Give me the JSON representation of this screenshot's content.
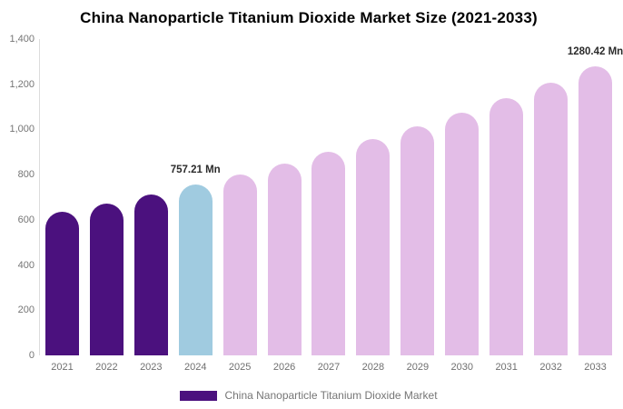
{
  "title": "China Nanoparticle Titanium Dioxide Market Size (2021-2033)",
  "legend": {
    "label": "China Nanoparticle Titanium Dioxide Market",
    "swatch_color": "#4b117e"
  },
  "colors": {
    "history_bar": "#4b117e",
    "current_bar": "#a0cbe0",
    "forecast_bar": "#e3bde7",
    "axis_line": "#dcdcdc",
    "tick_text": "#757575",
    "value_label_text": "#2b2b2b",
    "title_text": "#000000",
    "background": "#ffffff"
  },
  "chart_data": {
    "type": "bar",
    "title": "China Nanoparticle Titanium Dioxide Market Size (2021-2033)",
    "xlabel": "",
    "ylabel": "",
    "unit": "Mn",
    "ylim": [
      0,
      1400
    ],
    "grid": false,
    "legend_position": "bottom",
    "categories": [
      "2021",
      "2022",
      "2023",
      "2024",
      "2025",
      "2026",
      "2027",
      "2028",
      "2029",
      "2030",
      "2031",
      "2032",
      "2033"
    ],
    "values": [
      635.58,
      673.77,
      714.26,
      757.21,
      802.71,
      850.95,
      902.08,
      956.29,
      1013.75,
      1074.67,
      1139.25,
      1207.71,
      1280.42
    ],
    "color_roles": [
      "history",
      "history",
      "history",
      "current",
      "forecast",
      "forecast",
      "forecast",
      "forecast",
      "forecast",
      "forecast",
      "forecast",
      "forecast",
      "forecast"
    ],
    "y_ticks": [
      {
        "label": "0",
        "value": 0
      },
      {
        "label": "200",
        "value": 200
      },
      {
        "label": "400",
        "value": 400
      },
      {
        "label": "600",
        "value": 600
      },
      {
        "label": "800",
        "value": 800
      },
      {
        "label": "1,000",
        "value": 1000
      },
      {
        "label": "1,200",
        "value": 1200
      },
      {
        "label": "1,400",
        "value": 1400
      }
    ],
    "data_labels": [
      {
        "category": "2024",
        "text": "757.21 Mn"
      },
      {
        "category": "2033",
        "text": "1280.42 Mn"
      }
    ]
  }
}
